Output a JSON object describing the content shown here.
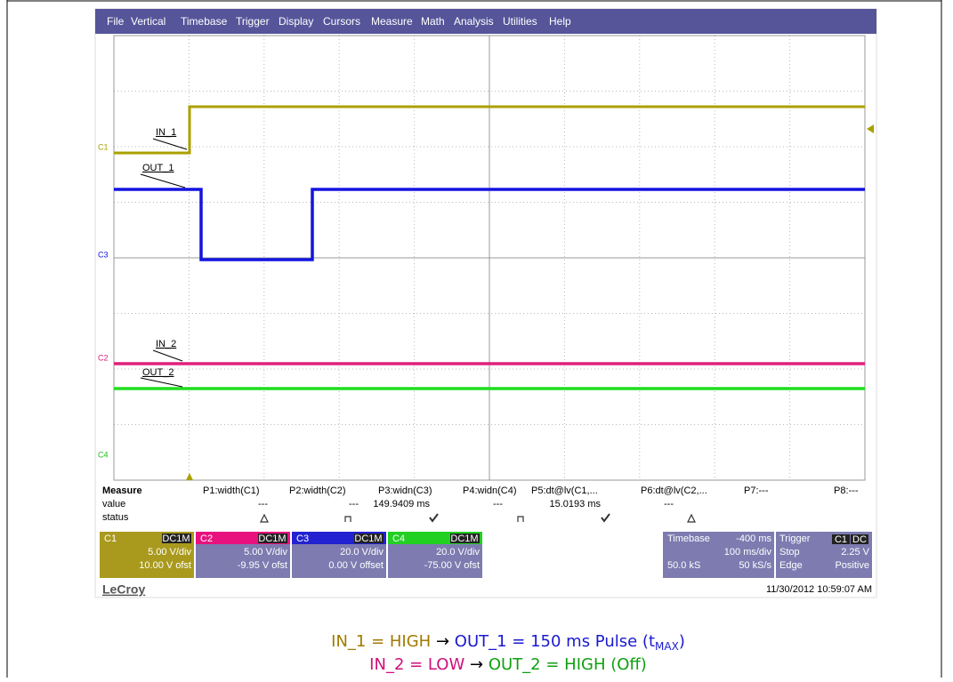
{
  "menu": [
    "File",
    "Vertical",
    "Timebase",
    "Trigger",
    "Display",
    "Cursors",
    "Measure",
    "Math",
    "Analysis",
    "Utilities",
    "Help"
  ],
  "screen": {
    "channel_markers": [
      "C1",
      "C3",
      "C2",
      "C4"
    ],
    "labels": [
      "IN_1",
      "OUT_1",
      "IN_2",
      "OUT_2"
    ]
  },
  "measure": {
    "title": "Measure",
    "columns": [
      "P1:width(C1)",
      "P2:width(C2)",
      "P3:widn(C3)",
      "P4:widn(C4)",
      "P5:dt@lv(C1,...",
      "P6:dt@lv(C2,...",
      "P7:---",
      "P8:---"
    ],
    "row_labels": [
      "value",
      "status"
    ],
    "values": [
      "---",
      "---",
      "149.9409 ms",
      "---",
      "15.0193 ms",
      "---"
    ]
  },
  "channels": [
    {
      "name": "C1",
      "coupling": "DC1M",
      "scale": "5.00 V/div",
      "offset": "10.00 V ofst"
    },
    {
      "name": "C2",
      "coupling": "DC1M",
      "scale": "5.00 V/div",
      "offset": "-9.95 V ofst"
    },
    {
      "name": "C3",
      "coupling": "DC1M",
      "scale": "20.0 V/div",
      "offset": "0.00 V offset"
    },
    {
      "name": "C4",
      "coupling": "DC1M",
      "scale": "20.0 V/div",
      "offset": "-75.00 V ofst"
    }
  ],
  "timebase": {
    "title": "Timebase",
    "delay": "-400 ms",
    "scale": "100 ms/div",
    "samples": "50.0 kS",
    "rate": "50 kS/s"
  },
  "trigger": {
    "title": "Trigger",
    "source": "C1",
    "coupling": "DC",
    "mode": "Stop",
    "level": "2.25 V",
    "type": "Edge",
    "slope": "Positive"
  },
  "brand": "LeCroy",
  "timestamp": "11/30/2012 10:59:07 AM",
  "caption": {
    "line1": [
      "IN_1 = HIGH",
      "→",
      "OUT_1 = 150 ms Pulse (t",
      "MAX",
      ")"
    ],
    "line2": [
      "IN_2 = LOW",
      "→",
      "OUT_2 = HIGH (Off)"
    ]
  }
}
